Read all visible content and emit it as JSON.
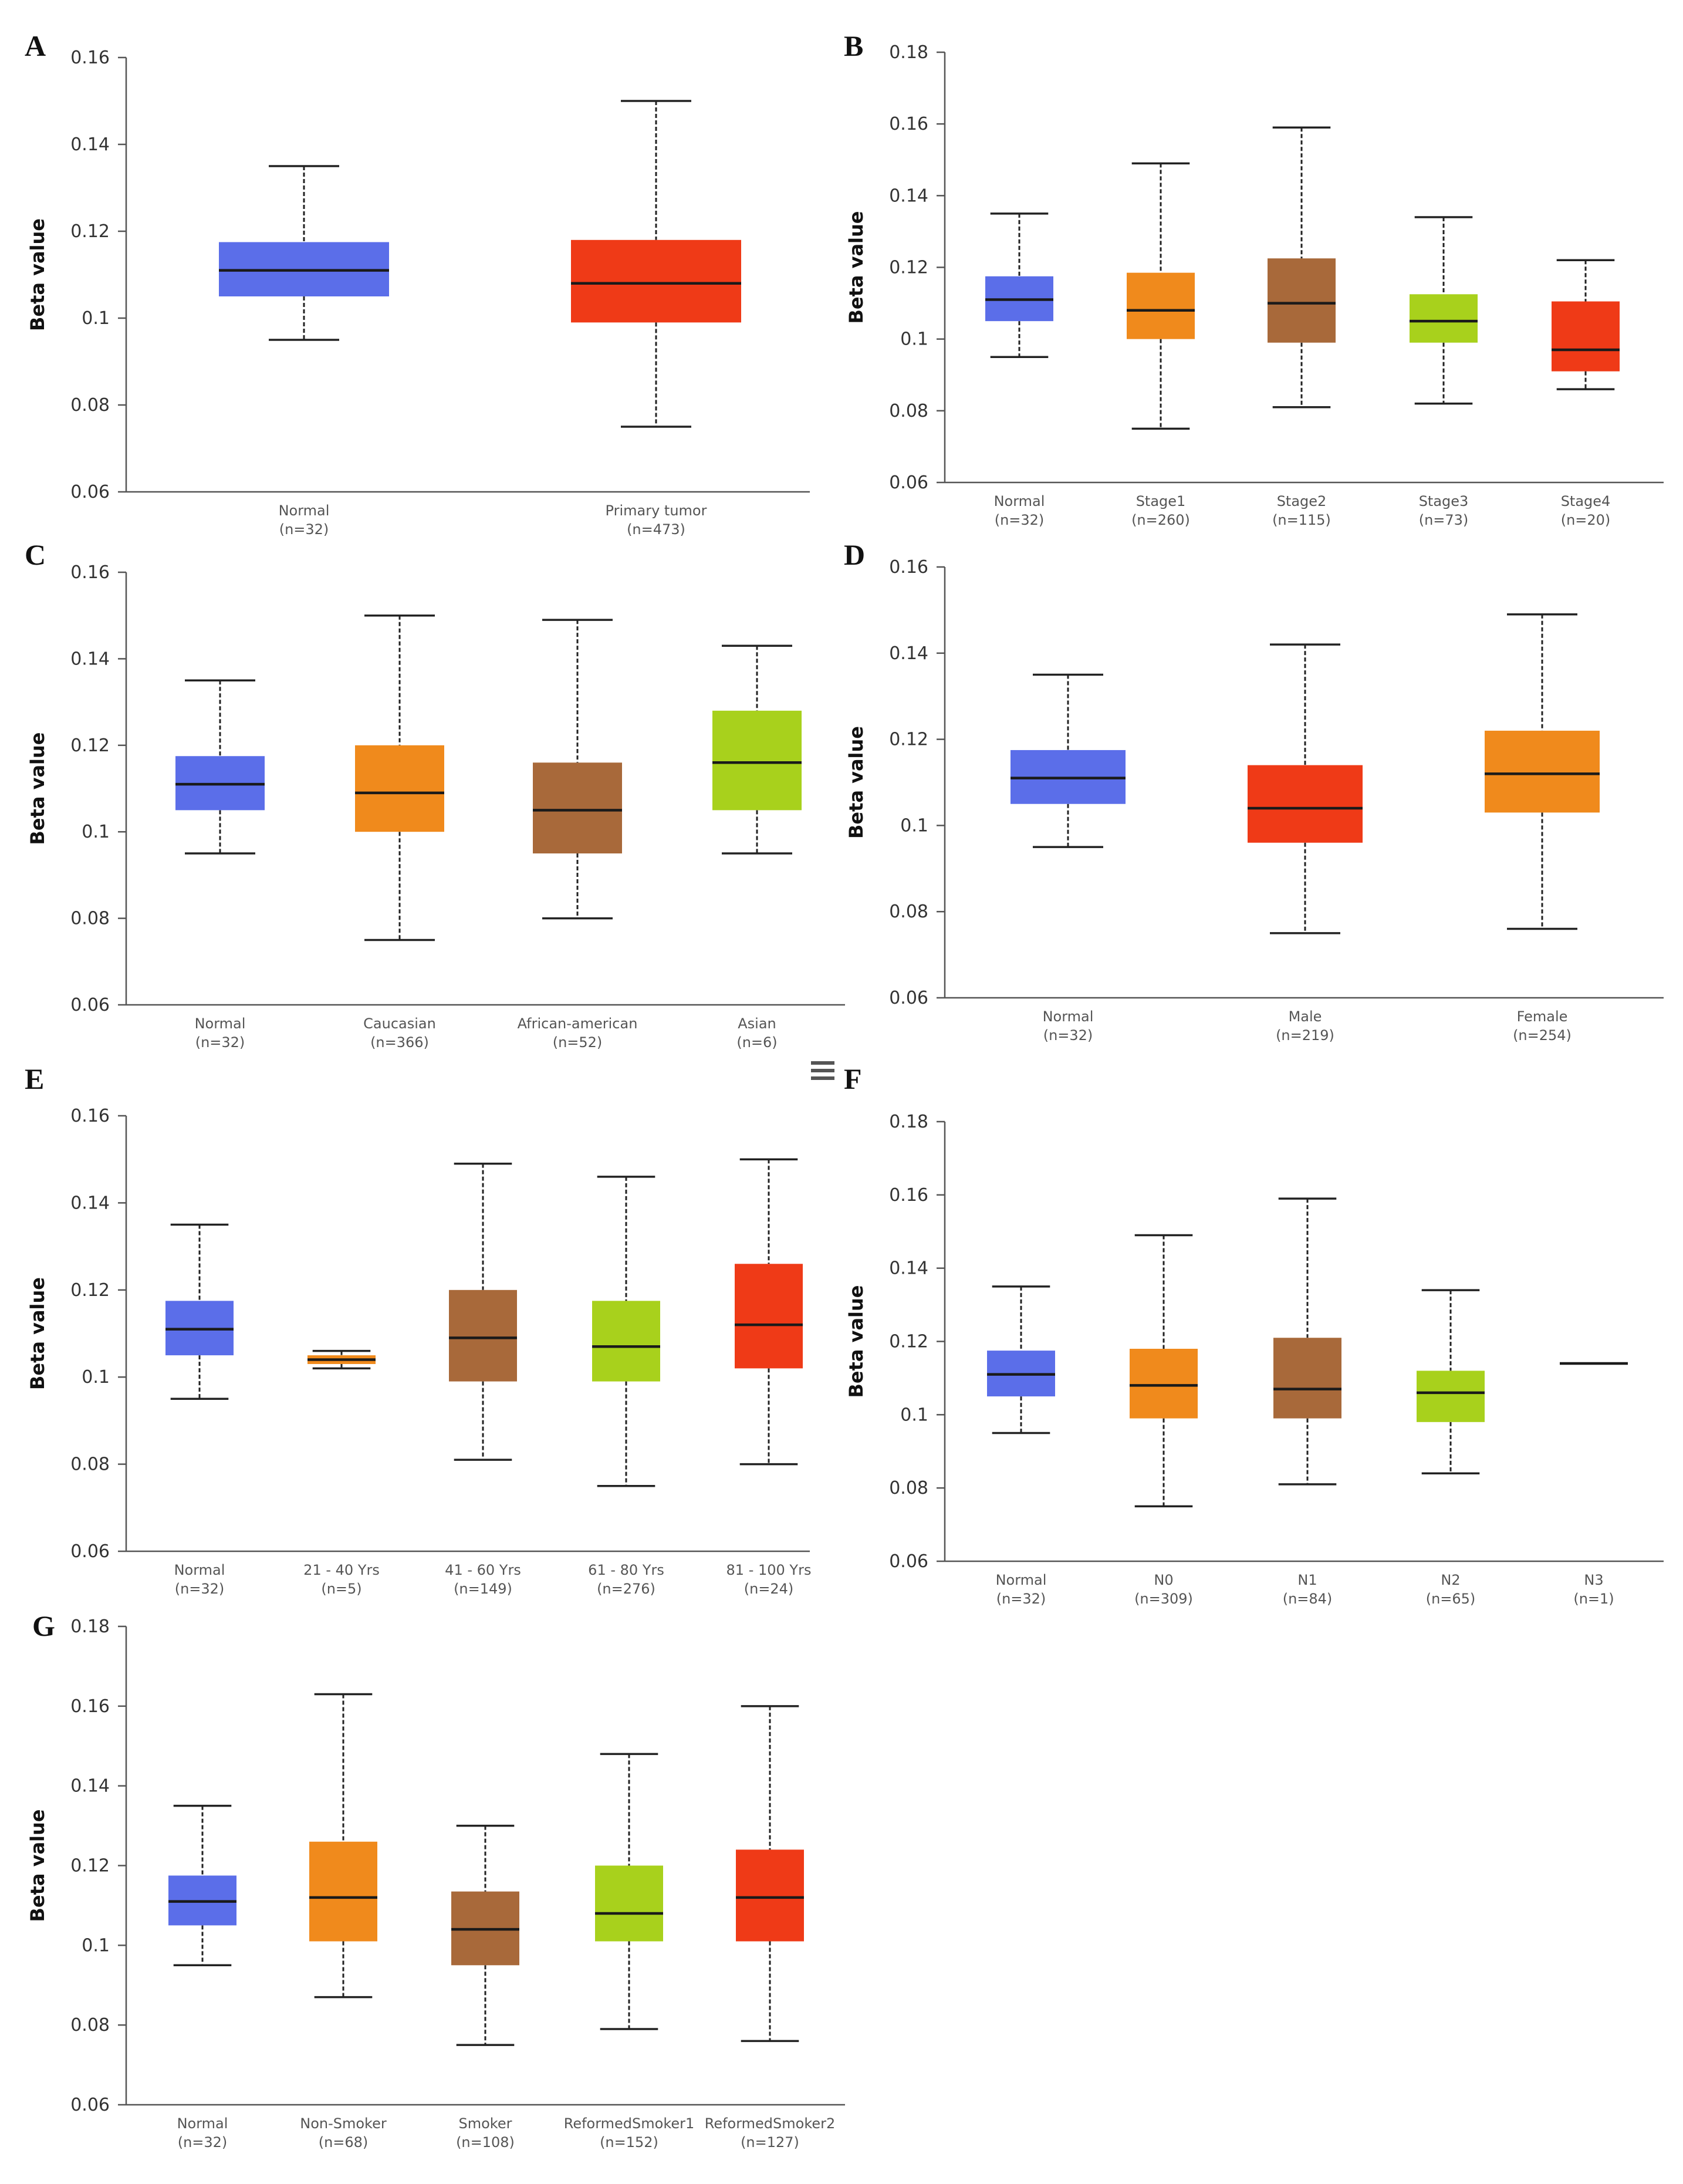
{
  "menu_icon": "hamburger-menu-icon",
  "colors": {
    "normal": "#5b6ee9",
    "tumor_red": "#ef3a17",
    "orange": "#f08a1c",
    "brown": "#a8693a",
    "lime": "#a8d11c"
  },
  "chart_data": [
    {
      "id": "A",
      "type": "box",
      "ylabel": "Beta value",
      "ylim": [
        0.06,
        0.16
      ],
      "yticks": [
        "0.06",
        "0.08",
        "0.1",
        "0.12",
        "0.14",
        "0.16"
      ],
      "categories": [
        {
          "name": "Normal",
          "n": "(n=32)",
          "color": "#5b6ee9",
          "min": 0.095,
          "q1": 0.105,
          "median": 0.111,
          "q3": 0.1175,
          "max": 0.135
        },
        {
          "name": "Primary tumor",
          "n": "(n=473)",
          "color": "#ef3a17",
          "min": 0.075,
          "q1": 0.099,
          "median": 0.108,
          "q3": 0.118,
          "max": 0.15
        }
      ]
    },
    {
      "id": "B",
      "type": "box",
      "ylabel": "Beta value",
      "ylim": [
        0.06,
        0.18
      ],
      "yticks": [
        "0.06",
        "0.08",
        "0.1",
        "0.12",
        "0.14",
        "0.16",
        "0.18"
      ],
      "categories": [
        {
          "name": "Normal",
          "n": "(n=32)",
          "color": "#5b6ee9",
          "min": 0.095,
          "q1": 0.105,
          "median": 0.111,
          "q3": 0.1175,
          "max": 0.135
        },
        {
          "name": "Stage1",
          "n": "(n=260)",
          "color": "#f08a1c",
          "min": 0.075,
          "q1": 0.1,
          "median": 0.108,
          "q3": 0.1185,
          "max": 0.149
        },
        {
          "name": "Stage2",
          "n": "(n=115)",
          "color": "#a8693a",
          "min": 0.081,
          "q1": 0.099,
          "median": 0.11,
          "q3": 0.1225,
          "max": 0.159
        },
        {
          "name": "Stage3",
          "n": "(n=73)",
          "color": "#a8d11c",
          "min": 0.082,
          "q1": 0.099,
          "median": 0.105,
          "q3": 0.1125,
          "max": 0.134
        },
        {
          "name": "Stage4",
          "n": "(n=20)",
          "color": "#ef3a17",
          "min": 0.086,
          "q1": 0.091,
          "median": 0.097,
          "q3": 0.1105,
          "max": 0.122
        }
      ]
    },
    {
      "id": "C",
      "type": "box",
      "ylabel": "Beta value",
      "ylim": [
        0.06,
        0.16
      ],
      "yticks": [
        "0.06",
        "0.08",
        "0.1",
        "0.12",
        "0.14",
        "0.16"
      ],
      "categories": [
        {
          "name": "Normal",
          "n": "(n=32)",
          "color": "#5b6ee9",
          "min": 0.095,
          "q1": 0.105,
          "median": 0.111,
          "q3": 0.1175,
          "max": 0.135
        },
        {
          "name": "Caucasian",
          "n": "(n=366)",
          "color": "#f08a1c",
          "min": 0.075,
          "q1": 0.1,
          "median": 0.109,
          "q3": 0.12,
          "max": 0.15
        },
        {
          "name": "African-american",
          "n": "(n=52)",
          "color": "#a8693a",
          "min": 0.08,
          "q1": 0.095,
          "median": 0.105,
          "q3": 0.116,
          "max": 0.149
        },
        {
          "name": "Asian",
          "n": "(n=6)",
          "color": "#a8d11c",
          "min": 0.095,
          "q1": 0.105,
          "median": 0.116,
          "q3": 0.128,
          "max": 0.143
        }
      ]
    },
    {
      "id": "D",
      "type": "box",
      "ylabel": "Beta value",
      "ylim": [
        0.06,
        0.16
      ],
      "yticks": [
        "0.06",
        "0.08",
        "0.1",
        "0.12",
        "0.14",
        "0.16"
      ],
      "categories": [
        {
          "name": "Normal",
          "n": "(n=32)",
          "color": "#5b6ee9",
          "min": 0.095,
          "q1": 0.105,
          "median": 0.111,
          "q3": 0.1175,
          "max": 0.135
        },
        {
          "name": "Male",
          "n": "(n=219)",
          "color": "#ef3a17",
          "min": 0.075,
          "q1": 0.096,
          "median": 0.104,
          "q3": 0.114,
          "max": 0.142
        },
        {
          "name": "Female",
          "n": "(n=254)",
          "color": "#f08a1c",
          "min": 0.076,
          "q1": 0.103,
          "median": 0.112,
          "q3": 0.122,
          "max": 0.149
        }
      ]
    },
    {
      "id": "E",
      "type": "box",
      "ylabel": "Beta value",
      "ylim": [
        0.06,
        0.16
      ],
      "yticks": [
        "0.06",
        "0.08",
        "0.1",
        "0.12",
        "0.14",
        "0.16"
      ],
      "categories": [
        {
          "name": "Normal",
          "n": "(n=32)",
          "color": "#5b6ee9",
          "min": 0.095,
          "q1": 0.105,
          "median": 0.111,
          "q3": 0.1175,
          "max": 0.135
        },
        {
          "name": "21 - 40 Yrs",
          "n": "(n=5)",
          "color": "#f08a1c",
          "min": 0.102,
          "q1": 0.103,
          "median": 0.104,
          "q3": 0.105,
          "max": 0.106
        },
        {
          "name": "41 - 60 Yrs",
          "n": "(n=149)",
          "color": "#a8693a",
          "min": 0.081,
          "q1": 0.099,
          "median": 0.109,
          "q3": 0.12,
          "max": 0.149
        },
        {
          "name": "61 - 80 Yrs",
          "n": "(n=276)",
          "color": "#a8d11c",
          "min": 0.075,
          "q1": 0.099,
          "median": 0.107,
          "q3": 0.1175,
          "max": 0.146
        },
        {
          "name": "81 - 100 Yrs",
          "n": "(n=24)",
          "color": "#ef3a17",
          "min": 0.08,
          "q1": 0.102,
          "median": 0.112,
          "q3": 0.126,
          "max": 0.15
        }
      ]
    },
    {
      "id": "F",
      "type": "box",
      "ylabel": "Beta value",
      "ylim": [
        0.06,
        0.18
      ],
      "yticks": [
        "0.06",
        "0.08",
        "0.1",
        "0.12",
        "0.14",
        "0.16",
        "0.18"
      ],
      "categories": [
        {
          "name": "Normal",
          "n": "(n=32)",
          "color": "#5b6ee9",
          "min": 0.095,
          "q1": 0.105,
          "median": 0.111,
          "q3": 0.1175,
          "max": 0.135
        },
        {
          "name": "N0",
          "n": "(n=309)",
          "color": "#f08a1c",
          "min": 0.075,
          "q1": 0.099,
          "median": 0.108,
          "q3": 0.118,
          "max": 0.149
        },
        {
          "name": "N1",
          "n": "(n=84)",
          "color": "#a8693a",
          "min": 0.081,
          "q1": 0.099,
          "median": 0.107,
          "q3": 0.121,
          "max": 0.159
        },
        {
          "name": "N2",
          "n": "(n=65)",
          "color": "#a8d11c",
          "min": 0.084,
          "q1": 0.098,
          "median": 0.106,
          "q3": 0.112,
          "max": 0.134
        },
        {
          "name": "N3",
          "n": "(n=1)",
          "color": "#ef3a17",
          "min": 0.114,
          "q1": 0.114,
          "median": 0.114,
          "q3": 0.114,
          "max": 0.114
        }
      ]
    },
    {
      "id": "G",
      "type": "box",
      "ylabel": "Beta value",
      "ylim": [
        0.06,
        0.18
      ],
      "yticks": [
        "0.06",
        "0.08",
        "0.1",
        "0.12",
        "0.14",
        "0.16",
        "0.18"
      ],
      "categories": [
        {
          "name": "Normal",
          "n": "(n=32)",
          "color": "#5b6ee9",
          "min": 0.095,
          "q1": 0.105,
          "median": 0.111,
          "q3": 0.1175,
          "max": 0.135
        },
        {
          "name": "Non-Smoker",
          "n": "(n=68)",
          "color": "#f08a1c",
          "min": 0.087,
          "q1": 0.101,
          "median": 0.112,
          "q3": 0.126,
          "max": 0.163
        },
        {
          "name": "Smoker",
          "n": "(n=108)",
          "color": "#a8693a",
          "min": 0.075,
          "q1": 0.095,
          "median": 0.104,
          "q3": 0.1135,
          "max": 0.13
        },
        {
          "name": "ReformedSmoker1",
          "n": "(n=152)",
          "color": "#a8d11c",
          "min": 0.079,
          "q1": 0.101,
          "median": 0.108,
          "q3": 0.12,
          "max": 0.148
        },
        {
          "name": "ReformedSmoker2",
          "n": "(n=127)",
          "color": "#ef3a17",
          "min": 0.076,
          "q1": 0.101,
          "median": 0.112,
          "q3": 0.124,
          "max": 0.16
        }
      ]
    }
  ]
}
